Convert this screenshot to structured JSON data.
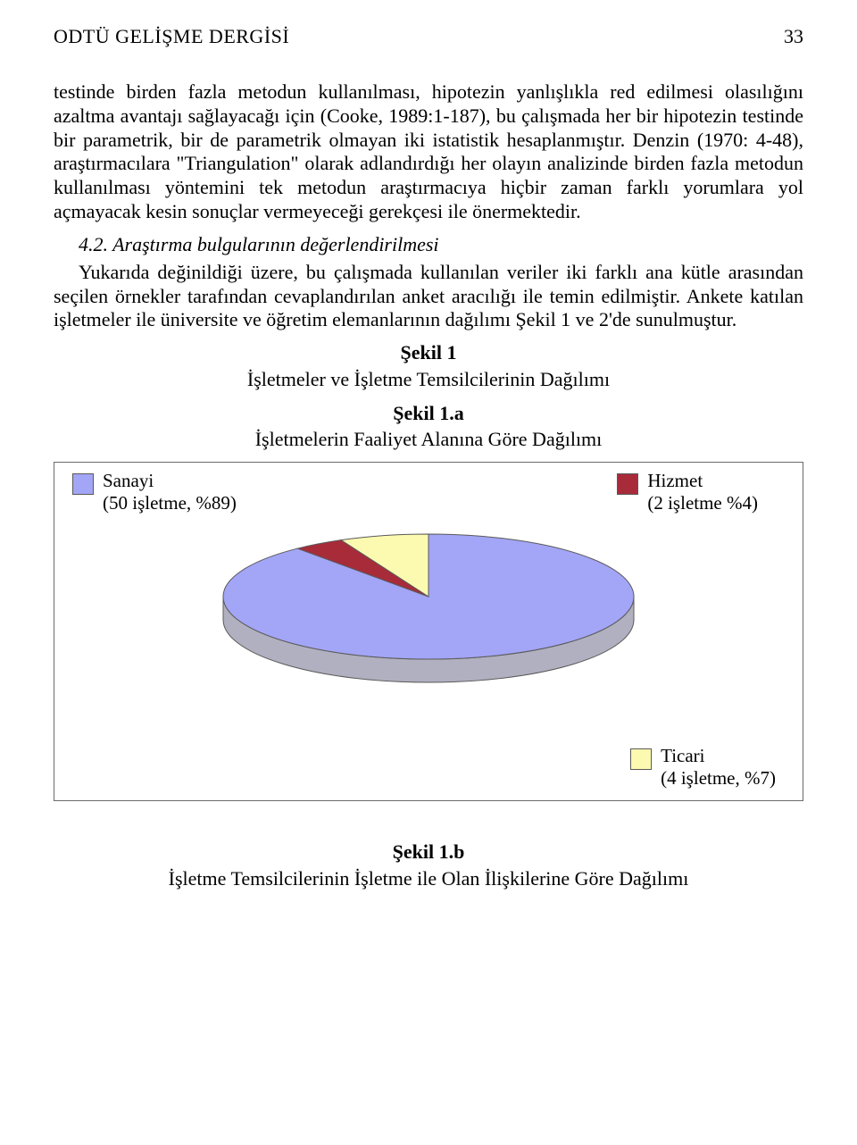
{
  "header": {
    "journal": "ODTÜ GELİŞME DERGİSİ",
    "page_number": "33"
  },
  "para1": "testinde birden fazla metodun kullanılması, hipotezin yanlışlıkla red edilmesi olasılığını azaltma avantajı sağlayacağı için (Cooke, 1989:1-187), bu çalışmada her bir hipotezin testinde bir parametrik, bir de parametrik olmayan iki istatistik hesaplanmıştır. Denzin (1970: 4-48), araştırmacılara \"Triangulation\" olarak adlandırdığı her olayın analizinde birden fazla metodun kullanılması yöntemini tek metodun araştırmacıya hiçbir zaman farklı yorumlara yol açmayacak kesin sonuçlar vermeyeceği gerekçesi ile önermektedir.",
  "subhead": "4.2. Araştırma bulgularının değerlendirilmesi",
  "para2": "Yukarıda değinildiği üzere, bu çalışmada kullanılan veriler iki farklı ana kütle arasından seçilen örnekler tarafından cevaplandırılan anket aracılığı ile temin edilmiştir. Ankete katılan işletmeler ile üniversite ve öğretim elemanlarının dağılımı Şekil 1 ve 2'de sunulmuştur.",
  "figure1": {
    "label": "Şekil 1",
    "caption": "İşletmeler ve İşletme Temsilcilerinin Dağılımı"
  },
  "figure1a": {
    "label": "Şekil 1.a",
    "caption": "İşletmelerin Faaliyet Alanına Göre Dağılımı"
  },
  "figure1b": {
    "label": "Şekil 1.b",
    "caption": "İşletme Temsilcilerinin İşletme ile Olan İlişkilerine Göre Dağılımı"
  },
  "pie_chart": {
    "type": "pie",
    "style": "3d",
    "background_color": "#ffffff",
    "border_color": "#6b6b6b",
    "depth_color": "#b0b0c0",
    "stroke_color": "#5a5a5a",
    "legend_font_size": 21,
    "slices": [
      {
        "name": "Sanayi",
        "label_line1": "Sanayi",
        "label_line2": "(50 işletme, %89)",
        "percent": 89,
        "color": "#a3a5f6",
        "legend_position": "top-left"
      },
      {
        "name": "Hizmet",
        "label_line1": "Hizmet",
        "label_line2": "(2 işletme %4)",
        "percent": 4,
        "color": "#a82b3a",
        "legend_position": "top-right"
      },
      {
        "name": "Ticari",
        "label_line1": "Ticari",
        "label_line2": "(4 işletme, %7)",
        "percent": 7,
        "color": "#fcfab0",
        "legend_position": "bottom-right"
      }
    ]
  }
}
